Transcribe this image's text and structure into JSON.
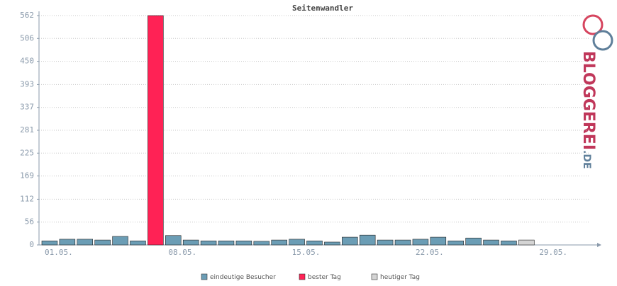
{
  "chart_data": {
    "type": "bar",
    "title": "Seitenwandler",
    "categories": [
      "01.05.",
      null,
      null,
      null,
      null,
      null,
      null,
      "08.05.",
      null,
      null,
      null,
      null,
      null,
      null,
      "15.05.",
      null,
      null,
      null,
      null,
      null,
      null,
      "22.05.",
      null,
      null,
      null,
      null,
      null,
      null,
      "29.05.",
      null,
      null
    ],
    "series": [
      {
        "name": "eindeutige Besucher",
        "color": "#6b9db5",
        "values": [
          10,
          14,
          14,
          12,
          21,
          10,
          null,
          23,
          12,
          10,
          10,
          10,
          9,
          12,
          14,
          10,
          7,
          19,
          24,
          12,
          12,
          14,
          19,
          10,
          17,
          12,
          10,
          null,
          null,
          null,
          null
        ]
      },
      {
        "name": "bester Tag",
        "color": "#ff2255",
        "values": [
          null,
          null,
          null,
          null,
          null,
          null,
          562,
          null,
          null,
          null,
          null,
          null,
          null,
          null,
          null,
          null,
          null,
          null,
          null,
          null,
          null,
          null,
          null,
          null,
          null,
          null,
          null,
          null,
          null,
          null,
          null
        ]
      },
      {
        "name": "heutiger Tag",
        "color": "#d4d4d4",
        "values": [
          null,
          null,
          null,
          null,
          null,
          null,
          null,
          null,
          null,
          null,
          null,
          null,
          null,
          null,
          null,
          null,
          null,
          null,
          null,
          null,
          null,
          null,
          null,
          null,
          null,
          null,
          null,
          12,
          null,
          null,
          null
        ]
      }
    ],
    "ylim": [
      0,
      562
    ],
    "yticks": [
      0,
      56,
      112,
      169,
      225,
      281,
      337,
      393,
      450,
      506,
      562
    ],
    "grid": true
  },
  "logo": {
    "name": "BLOGGEREI",
    "tld": ".DE"
  }
}
